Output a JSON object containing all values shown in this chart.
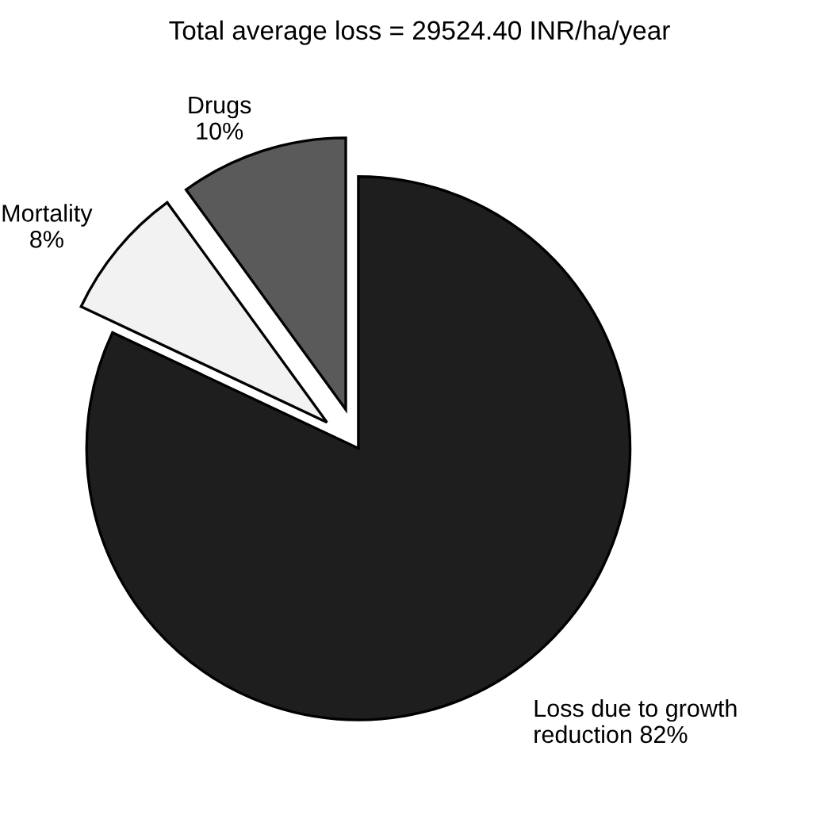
{
  "chart_data": {
    "type": "pie",
    "title": "Total average loss = 29524.40 INR/ha/year",
    "categories": [
      "Drugs",
      "Mortality",
      "Loss due to growth reduction"
    ],
    "values": [
      10,
      8,
      82
    ],
    "colors": [
      "#5a5a5a",
      "#f2f2f2",
      "#1e1e1e"
    ],
    "value_labels": [
      "10%",
      "8%",
      "82%"
    ]
  }
}
